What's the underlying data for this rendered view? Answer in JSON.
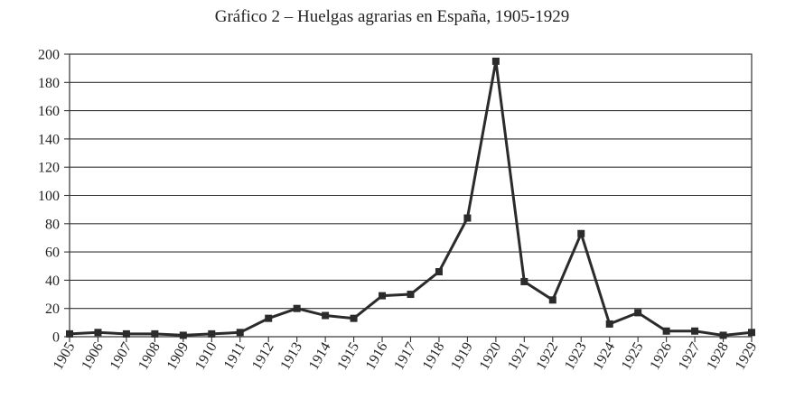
{
  "chart_data": {
    "type": "line",
    "title": "Gráfico 2 – Huelgas agrarias en España, 1905-1929",
    "xlabel": "",
    "ylabel": "",
    "ylim": [
      0,
      200
    ],
    "yticks": [
      0,
      20,
      40,
      60,
      80,
      100,
      120,
      140,
      160,
      180,
      200
    ],
    "grid": "horizontal",
    "categories": [
      "1905",
      "1906",
      "1907",
      "1908",
      "1909",
      "1910",
      "1911",
      "1912",
      "1913",
      "1914",
      "1915",
      "1916",
      "1917",
      "1918",
      "1919",
      "1920",
      "1921",
      "1922",
      "1923",
      "1924",
      "1925",
      "1926",
      "1927",
      "1928",
      "1929"
    ],
    "series": [
      {
        "name": "Huelgas agrarias",
        "values": [
          2,
          3,
          2,
          2,
          1,
          2,
          3,
          13,
          20,
          15,
          13,
          29,
          30,
          46,
          84,
          195,
          39,
          26,
          73,
          9,
          17,
          4,
          4,
          1,
          3
        ],
        "color": "#2b2b2b",
        "marker": "square"
      }
    ]
  }
}
